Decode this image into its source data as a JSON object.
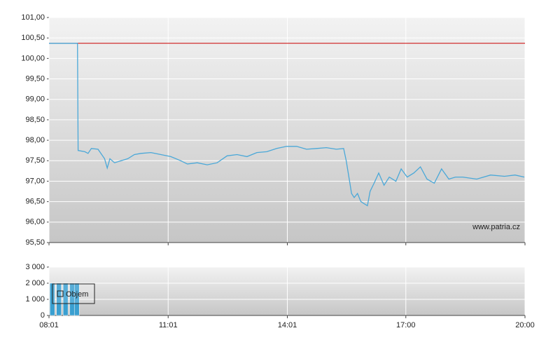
{
  "chart_data": [
    {
      "type": "line",
      "watermark": "www.patria.cz",
      "grid": true,
      "xlim": [
        "08:01",
        "20:00"
      ],
      "ylim": [
        95.5,
        101
      ],
      "yticks": [
        {
          "value": 95.5,
          "label": "95,50"
        },
        {
          "value": 96,
          "label": "96,00"
        },
        {
          "value": 96.5,
          "label": "96,50"
        },
        {
          "value": 97,
          "label": "97,00"
        },
        {
          "value": 97.5,
          "label": "97,50"
        },
        {
          "value": 98,
          "label": "98,00"
        },
        {
          "value": 98.5,
          "label": "98,50"
        },
        {
          "value": 99,
          "label": "99,00"
        },
        {
          "value": 99.5,
          "label": "99,50"
        },
        {
          "value": 100,
          "label": "100,00"
        },
        {
          "value": 100.5,
          "label": "100,50"
        },
        {
          "value": 101,
          "label": "101,00"
        }
      ],
      "reference_line": {
        "value": 100.37,
        "color": "#cc0000"
      },
      "x": [
        "08:01",
        "08:44",
        "08:45",
        "08:55",
        "09:00",
        "09:05",
        "09:15",
        "09:25",
        "09:29",
        "09:33",
        "09:40",
        "09:50",
        "10:00",
        "10:10",
        "10:20",
        "10:35",
        "10:50",
        "11:05",
        "11:20",
        "11:30",
        "11:45",
        "12:00",
        "12:15",
        "12:30",
        "12:45",
        "13:00",
        "13:15",
        "13:30",
        "13:45",
        "14:00",
        "14:15",
        "14:30",
        "14:45",
        "15:00",
        "15:15",
        "15:26",
        "15:30",
        "15:35",
        "15:38",
        "15:42",
        "15:47",
        "15:52",
        "15:57",
        "16:02",
        "16:06",
        "16:12",
        "16:19",
        "16:27",
        "16:35",
        "16:45",
        "16:53",
        "17:02",
        "17:12",
        "17:22",
        "17:32",
        "17:43",
        "17:54",
        "18:05",
        "18:15",
        "18:26",
        "18:47",
        "19:08",
        "19:29",
        "19:45",
        "19:59"
      ],
      "series": [
        {
          "color": "#4aa8d8",
          "values": [
            100.37,
            100.37,
            97.75,
            97.72,
            97.68,
            97.8,
            97.78,
            97.55,
            97.32,
            97.55,
            97.45,
            97.5,
            97.55,
            97.65,
            97.68,
            97.7,
            97.65,
            97.6,
            97.5,
            97.42,
            97.45,
            97.4,
            97.45,
            97.62,
            97.65,
            97.6,
            97.7,
            97.72,
            97.8,
            97.85,
            97.85,
            97.78,
            97.8,
            97.82,
            97.78,
            97.8,
            97.5,
            97.0,
            96.7,
            96.6,
            96.7,
            96.5,
            96.45,
            96.4,
            96.75,
            96.95,
            97.2,
            96.9,
            97.1,
            97.0,
            97.3,
            97.1,
            97.2,
            97.35,
            97.05,
            96.95,
            97.3,
            97.05,
            97.1,
            97.1,
            97.05,
            97.15,
            97.12,
            97.15,
            97.1
          ]
        }
      ]
    },
    {
      "type": "bar",
      "grid": true,
      "xlim": [
        "08:01",
        "20:00"
      ],
      "xticks": [
        "08:01",
        "11:01",
        "14:01",
        "17:00",
        "20:00"
      ],
      "ylim": [
        0,
        3000
      ],
      "yticks": [
        0,
        {
          "value": 1000,
          "label": "1 000"
        },
        {
          "value": 2000,
          "label": "2 000"
        },
        {
          "value": 3000,
          "label": "3 000"
        }
      ],
      "x": [
        "08:06",
        "08:16",
        "08:26",
        "08:36",
        "08:43"
      ],
      "series": [
        {
          "name": "Objem",
          "color": "#3a9fd0",
          "values": [
            2000,
            2000,
            2000,
            2000,
            2000
          ]
        }
      ]
    }
  ]
}
